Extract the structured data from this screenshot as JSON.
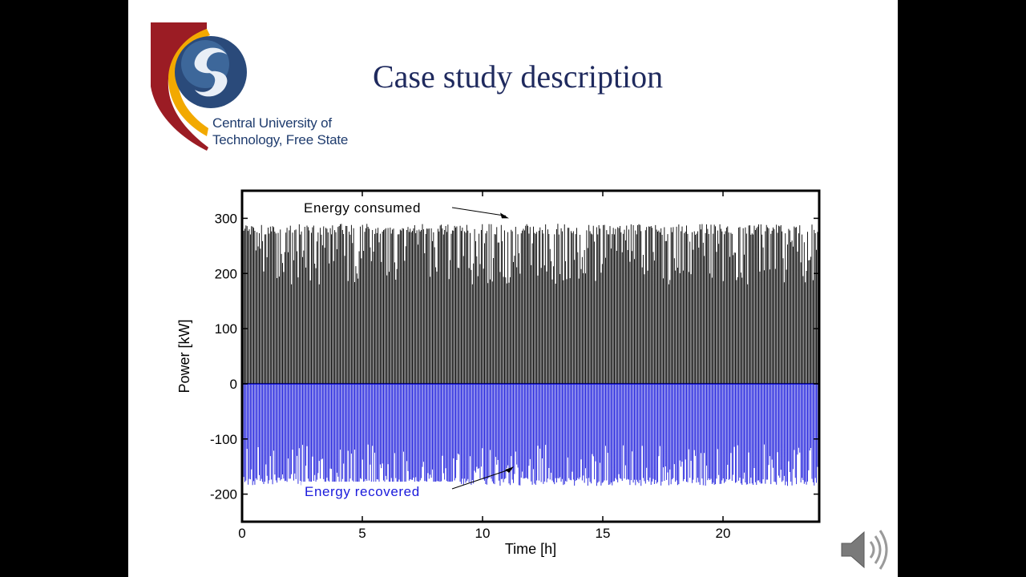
{
  "slide": {
    "title": "Case study description",
    "logo": {
      "line1": "Central University of",
      "line2": "Technology, Free State",
      "colors": {
        "maroon": "#9b1c24",
        "gold": "#f2a900",
        "blue": "#1f3c6e"
      }
    },
    "audio_icon": "speaker-icon"
  },
  "chart_data": {
    "type": "line",
    "title": "",
    "xlabel": "Time [h]",
    "ylabel": "Power [kW]",
    "xlim": [
      0,
      24
    ],
    "ylim": [
      -250,
      350
    ],
    "xticks": [
      0,
      5,
      10,
      15,
      20
    ],
    "yticks": [
      -200,
      -100,
      0,
      100,
      200,
      300
    ],
    "grid": false,
    "series": [
      {
        "name": "Energy consumed",
        "color": "#000000",
        "description": "dense positive power spikes",
        "typical_peak": 290,
        "min_peak": 180,
        "baseline": 0
      },
      {
        "name": "Energy recovered",
        "color": "#1a1adc",
        "description": "dense negative regenerative power spikes",
        "typical_trough": -180,
        "min_trough": -110,
        "baseline": 0
      }
    ],
    "annotations": [
      {
        "text": "Energy consumed",
        "color": "#000000",
        "points_to": [
          11.1,
          300
        ]
      },
      {
        "text": "Energy recovered",
        "color": "#1a1adc",
        "points_to": [
          11.3,
          -150
        ]
      }
    ]
  }
}
